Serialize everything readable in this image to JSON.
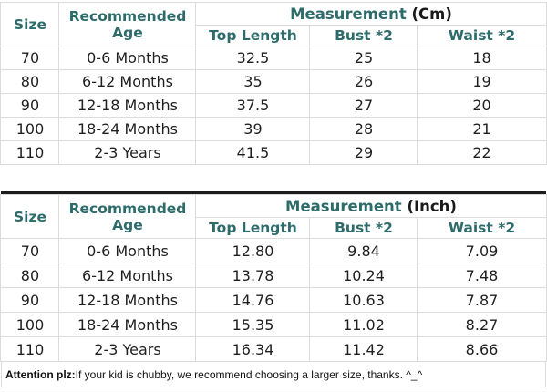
{
  "colors": {
    "header_text": "#2e6b6b",
    "unit_text": "#1a1a1a",
    "body_text": "#1f1f1f",
    "grid_line": "#dcdcdc",
    "table_separator": "#1c1c1c",
    "background": "#ffffff"
  },
  "footer": {
    "bold_label": "Attention plz:",
    "message": " If your kid is chubby, we recommend choosing a larger size, thanks. ^_^"
  },
  "chart_data": [
    {
      "type": "table",
      "title": "Measurement (Cm)",
      "measurement_label": "Measurement",
      "unit_label": "(Cm)",
      "columns": [
        "Size",
        "Recommended Age",
        "Top Length",
        "Bust *2",
        "Waist *2"
      ],
      "rows": [
        [
          "70",
          "0-6 Months",
          "32.5",
          "25",
          "18"
        ],
        [
          "80",
          "6-12 Months",
          "35",
          "26",
          "19"
        ],
        [
          "90",
          "12-18 Months",
          "37.5",
          "27",
          "20"
        ],
        [
          "100",
          "18-24 Months",
          "39",
          "28",
          "21"
        ],
        [
          "110",
          "2-3 Years",
          "41.5",
          "29",
          "22"
        ]
      ]
    },
    {
      "type": "table",
      "title": "Measurement (Inch)",
      "measurement_label": "Measurement",
      "unit_label": "(Inch)",
      "columns": [
        "Size",
        "Recommended Age",
        "Top Length",
        "Bust *2",
        "Waist *2"
      ],
      "rows": [
        [
          "70",
          "0-6 Months",
          "12.80",
          "9.84",
          "7.09"
        ],
        [
          "80",
          "6-12 Months",
          "13.78",
          "10.24",
          "7.48"
        ],
        [
          "90",
          "12-18 Months",
          "14.76",
          "10.63",
          "7.87"
        ],
        [
          "100",
          "18-24 Months",
          "15.35",
          "11.02",
          "8.27"
        ],
        [
          "110",
          "2-3 Years",
          "16.34",
          "11.42",
          "8.66"
        ]
      ]
    }
  ]
}
